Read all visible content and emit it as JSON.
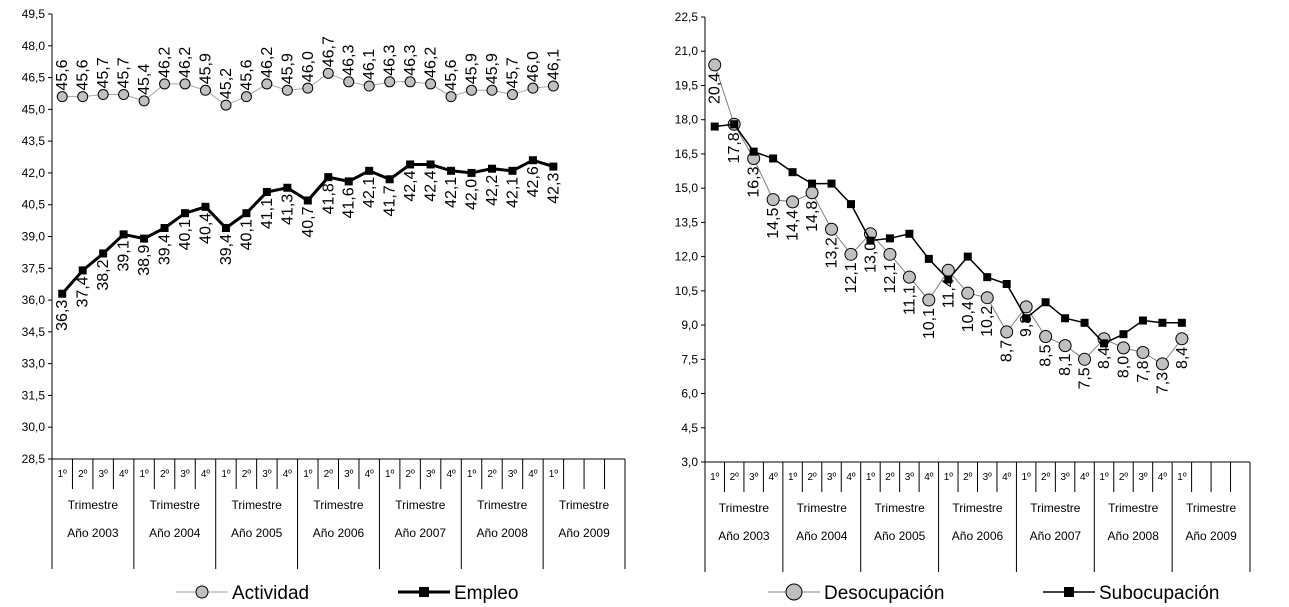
{
  "chart_data": [
    {
      "type": "line",
      "title": "",
      "xlabel": "",
      "ylabel": "",
      "ylim": [
        28.5,
        49.5
      ],
      "ytick_labels": [
        "28,5",
        "30,0",
        "31,5",
        "33,0",
        "34,5",
        "36,0",
        "37,5",
        "39,0",
        "40,5",
        "42,0",
        "43,5",
        "45,0",
        "46,5",
        "48,0",
        "49,5"
      ],
      "grid": false,
      "legend": "bottom",
      "quarter_labels": [
        "1º",
        "2º",
        "3º",
        "4º"
      ],
      "trimestre_label": "Trimestre",
      "year_groups": [
        {
          "label": "Año 2003",
          "quarters": 4
        },
        {
          "label": "Año 2004",
          "quarters": 4
        },
        {
          "label": "Año 2005",
          "quarters": 4
        },
        {
          "label": "Año 2006",
          "quarters": 4
        },
        {
          "label": "Año 2007",
          "quarters": 4
        },
        {
          "label": "Año 2008",
          "quarters": 4
        },
        {
          "label": "Año 2009",
          "quarters": 1
        }
      ],
      "series": [
        {
          "name": "Actividad",
          "color": "#a6a6a6",
          "marker": "circle",
          "values": [
            45.6,
            45.6,
            45.7,
            45.7,
            45.4,
            46.2,
            46.2,
            45.9,
            45.2,
            45.6,
            46.2,
            45.9,
            46.0,
            46.7,
            46.3,
            46.1,
            46.3,
            46.3,
            46.2,
            45.6,
            45.9,
            45.9,
            45.7,
            46.0,
            46.1
          ],
          "labels": [
            "45,6",
            "45,6",
            "45,7",
            "45,7",
            "45,4",
            "46,2",
            "46,2",
            "45,9",
            "45,2",
            "45,6",
            "46,2",
            "45,9",
            "46,0",
            "46,7",
            "46,3",
            "46,1",
            "46,3",
            "46,3",
            "46,2",
            "45,6",
            "45,9",
            "45,9",
            "45,7",
            "46,0",
            "46,1"
          ]
        },
        {
          "name": "Empleo",
          "color": "#000000",
          "marker": "square",
          "values": [
            36.3,
            37.4,
            38.2,
            39.1,
            38.9,
            39.4,
            40.1,
            40.4,
            39.4,
            40.1,
            41.1,
            41.3,
            40.7,
            41.8,
            41.6,
            42.1,
            41.7,
            42.4,
            42.4,
            42.1,
            42.0,
            42.2,
            42.1,
            42.6,
            42.3
          ],
          "labels": [
            "36,3",
            "37,4",
            "38,2",
            "39,1",
            "38,9",
            "39,4",
            "40,1",
            "40,4",
            "39,4",
            "40,1",
            "41,1",
            "41,3",
            "40,7",
            "41,8",
            "41,6",
            "42,1",
            "41,7",
            "42,4",
            "42,4",
            "42,1",
            "42,0",
            "42,2",
            "42,1",
            "42,6",
            "42,3"
          ]
        }
      ]
    },
    {
      "type": "line",
      "title": "",
      "xlabel": "",
      "ylabel": "",
      "ylim": [
        3.0,
        22.5
      ],
      "ytick_labels": [
        "3,0",
        "4,5",
        "6,0",
        "7,5",
        "9,0",
        "10,5",
        "12,0",
        "13,5",
        "15,0",
        "16,5",
        "18,0",
        "19,5",
        "21,0",
        "22,5"
      ],
      "grid": false,
      "legend": "bottom",
      "quarter_labels": [
        "1º",
        "2º",
        "3º",
        "4º"
      ],
      "trimestre_label": "Trimestre",
      "year_groups": [
        {
          "label": "Año 2003",
          "quarters": 4
        },
        {
          "label": "Año 2004",
          "quarters": 4
        },
        {
          "label": "Año 2005",
          "quarters": 4
        },
        {
          "label": "Año 2006",
          "quarters": 4
        },
        {
          "label": "Año 2007",
          "quarters": 4
        },
        {
          "label": "Año 2008",
          "quarters": 4
        },
        {
          "label": "Año 2009",
          "quarters": 1
        }
      ],
      "series": [
        {
          "name": "Desocupación",
          "color": "#808080",
          "marker": "circle",
          "values": [
            20.4,
            17.8,
            16.3,
            14.5,
            14.4,
            14.8,
            13.2,
            12.1,
            13.0,
            12.1,
            11.1,
            10.1,
            11.4,
            10.4,
            10.2,
            8.7,
            9.8,
            8.5,
            8.1,
            7.5,
            8.4,
            8.0,
            7.8,
            7.3,
            8.4
          ],
          "labels": [
            "20,4",
            "17,8",
            "16,3",
            "14,5",
            "14,4",
            "14,8",
            "13,2",
            "12,1",
            "13,0",
            "12,1",
            "11,1",
            "10,1",
            "11,4",
            "10,4",
            "10,2",
            "8,7",
            "9,8",
            "8,5",
            "8,1",
            "7,5",
            "8,4",
            "8,0",
            "7,8",
            "7,3",
            "8,4"
          ]
        },
        {
          "name": "Subocupación",
          "color": "#000000",
          "marker": "square",
          "values": [
            17.7,
            17.8,
            16.6,
            16.3,
            15.7,
            15.2,
            15.2,
            14.3,
            12.7,
            12.8,
            13.0,
            11.9,
            11.0,
            12.0,
            11.1,
            10.8,
            9.3,
            10.0,
            9.3,
            9.1,
            8.2,
            8.6,
            9.2,
            9.1,
            9.1
          ]
        }
      ]
    }
  ]
}
